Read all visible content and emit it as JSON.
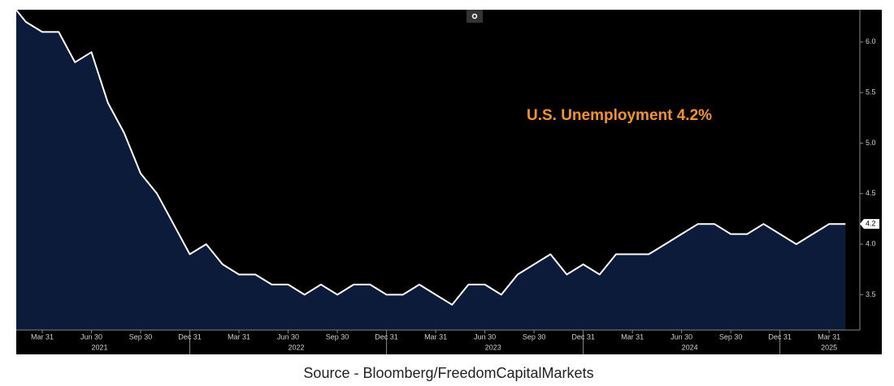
{
  "chart_data": {
    "type": "area",
    "annotation": "U.S. Unemployment 4.2%",
    "source": "Source - Bloomberg/FreedomCapitalMarkets",
    "categories": [
      null,
      null,
      "Mar 31",
      null,
      null,
      "Jun 30",
      null,
      null,
      "Sep 30",
      null,
      null,
      "Dec 31",
      null,
      null,
      "Mar 31",
      null,
      null,
      "Jun 30",
      null,
      null,
      "Sep 30",
      null,
      null,
      "Dec 31",
      null,
      null,
      "Mar 31",
      null,
      null,
      "Jun 30",
      null,
      null,
      "Sep 30",
      null,
      null,
      "Dec 31",
      null,
      null,
      "Mar 31",
      null,
      null,
      "Jun 30",
      null,
      null,
      "Sep 30",
      null,
      null,
      "Dec 31",
      null,
      null,
      "Mar 31",
      null
    ],
    "year_labels": [
      "2021",
      "2022",
      "2023",
      "2024",
      "2025"
    ],
    "series": [
      {
        "name": "U.S. Unemployment",
        "color": "#ffffff",
        "fill": "#0c1b39",
        "values": [
          6.4,
          6.2,
          6.1,
          6.1,
          5.8,
          5.9,
          5.4,
          5.1,
          4.7,
          4.5,
          4.2,
          3.9,
          4.0,
          3.8,
          3.7,
          3.7,
          3.6,
          3.6,
          3.5,
          3.6,
          3.5,
          3.6,
          3.6,
          3.5,
          3.5,
          3.6,
          3.5,
          3.4,
          3.6,
          3.6,
          3.5,
          3.7,
          3.8,
          3.9,
          3.7,
          3.8,
          3.7,
          3.9,
          3.9,
          3.9,
          4.0,
          4.1,
          4.2,
          4.2,
          4.1,
          4.1,
          4.2,
          4.1,
          4.0,
          4.1,
          4.2,
          4.2
        ]
      }
    ],
    "ylim": [
      3.15,
      6.32
    ],
    "yticks": [
      3.5,
      {
        "value": 4,
        "label": "4.0"
      },
      4.5,
      {
        "value": 5,
        "label": "5.0"
      },
      5.5,
      {
        "value": 6,
        "label": "6.0"
      }
    ],
    "annotation_color": "#f7941d",
    "background": "#000000"
  }
}
